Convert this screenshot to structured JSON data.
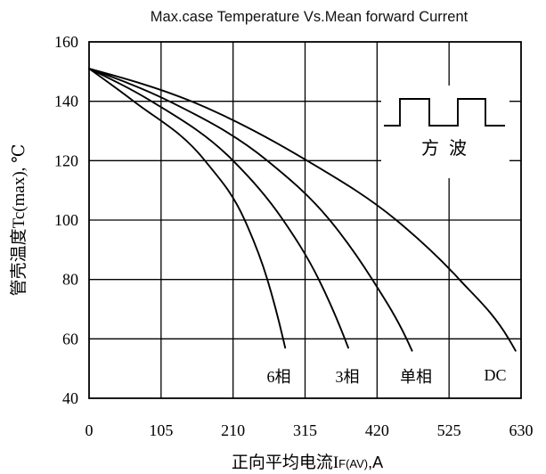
{
  "chart_data": {
    "type": "line",
    "title": "Max.case Temperature Vs.Mean forward Current",
    "xlabel": {
      "main": "正向平均电流I",
      "sub": "F(AV)",
      "tail": ",A"
    },
    "ylabel": "管壳温度Tc(max), ℃",
    "xlim": [
      0,
      630
    ],
    "ylim": [
      40,
      160
    ],
    "xticks": [
      0,
      105,
      210,
      315,
      420,
      525,
      630
    ],
    "yticks": [
      40,
      60,
      80,
      100,
      120,
      140,
      160
    ],
    "grid": true,
    "series": [
      {
        "name": "6相",
        "points": [
          [
            0,
            151
          ],
          [
            65,
            140
          ],
          [
            169,
            120
          ],
          [
            227,
            100
          ],
          [
            260,
            80
          ],
          [
            283,
            60
          ],
          [
            286,
            57
          ]
        ]
      },
      {
        "name": "3相",
        "points": [
          [
            0,
            151
          ],
          [
            91,
            140
          ],
          [
            210,
            120
          ],
          [
            283,
            100
          ],
          [
            335,
            80
          ],
          [
            373,
            60
          ],
          [
            378,
            57
          ]
        ]
      },
      {
        "name": "单相",
        "points": [
          [
            0,
            151
          ],
          [
            117,
            140
          ],
          [
            260,
            120
          ],
          [
            351,
            100
          ],
          [
            413,
            80
          ],
          [
            463,
            60
          ],
          [
            471,
            56
          ]
        ]
      },
      {
        "name": "DC",
        "points": [
          [
            0,
            151
          ],
          [
            149,
            140
          ],
          [
            318,
            120
          ],
          [
            448,
            100
          ],
          [
            540,
            80
          ],
          [
            612,
            60
          ],
          [
            622,
            56
          ]
        ]
      }
    ],
    "inset_label": "方 波"
  }
}
